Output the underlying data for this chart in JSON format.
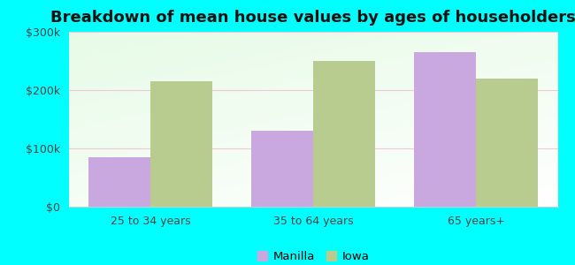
{
  "title": "Breakdown of mean house values by ages of householders",
  "categories": [
    "25 to 34 years",
    "35 to 64 years",
    "65 years+"
  ],
  "manilla_values": [
    85000,
    130000,
    265000
  ],
  "iowa_values": [
    215000,
    250000,
    220000
  ],
  "manilla_color": "#c9a8e0",
  "iowa_color": "#b8cc90",
  "ylim": [
    0,
    300000
  ],
  "yticks": [
    0,
    100000,
    200000,
    300000
  ],
  "ytick_labels": [
    "$0",
    "$100k",
    "$200k",
    "$300k"
  ],
  "legend_labels": [
    "Manilla",
    "Iowa"
  ],
  "background_color": "#00ffff",
  "bar_width": 0.38,
  "title_fontsize": 13
}
